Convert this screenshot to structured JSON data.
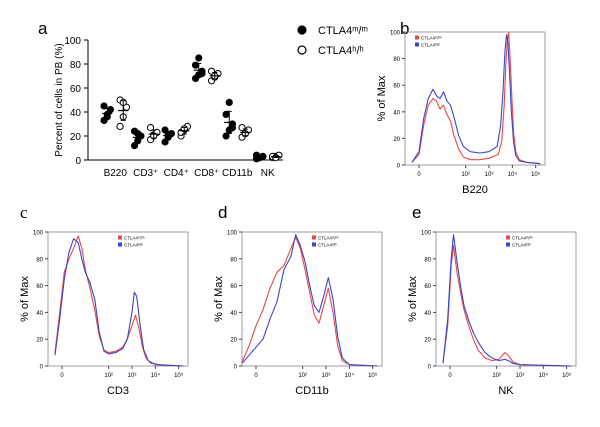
{
  "chart_data": [
    {
      "panel": "a",
      "type": "scatter",
      "ylabel": "Percent of cells in PB (%)",
      "ylim": [
        0,
        100
      ],
      "yticks": [
        "0",
        "20",
        "40",
        "60",
        "80",
        "100"
      ],
      "categories": [
        "B220",
        "CD3⁺",
        "CD4⁺",
        "CD8⁺",
        "CD11b",
        "NK"
      ],
      "legend_position": "top-right",
      "series": [
        {
          "name": "CTLA4ᵐ/ᵐ",
          "marker": "filled-circle",
          "points": [
            [
              33,
              38,
              42,
              45,
              36
            ],
            [
              12,
              16,
              20,
              24,
              22
            ],
            [
              15,
              19,
              22,
              25,
              21
            ],
            [
              68,
              71,
              74,
              79,
              85,
              72
            ],
            [
              20,
              25,
              30,
              38,
              48,
              27
            ],
            [
              1,
              2,
              3,
              4,
              2
            ]
          ]
        },
        {
          "name": "CTLA4ʰ/ʰ",
          "marker": "open-circle",
          "points": [
            [
              28,
              36,
              44,
              50,
              48
            ],
            [
              17,
              21,
              23,
              27,
              20
            ],
            [
              20,
              25,
              28,
              23,
              26
            ],
            [
              66,
              69,
              72,
              74,
              70
            ],
            [
              19,
              22,
              25,
              27,
              22
            ],
            [
              2,
              3,
              4,
              3,
              2
            ]
          ]
        }
      ]
    },
    {
      "panel": "b",
      "type": "line",
      "xlabel": "B220",
      "ylabel": "% of Max",
      "ylim": [
        0,
        100
      ],
      "yticks": [
        "0",
        "20",
        "40",
        "60",
        "80",
        "100"
      ],
      "xticks": [
        "0",
        "10²",
        "10³",
        "10⁴",
        "10⁵"
      ],
      "legend_position": "top-left",
      "series": [
        {
          "name": "CTLA4ᵐ/ᵐ",
          "color": "#e8474a",
          "points": [
            [
              -0.3,
              2
            ],
            [
              0,
              8
            ],
            [
              0.2,
              30
            ],
            [
              0.4,
              45
            ],
            [
              0.6,
              50
            ],
            [
              0.75,
              48
            ],
            [
              0.9,
              42
            ],
            [
              1.05,
              45
            ],
            [
              1.2,
              38
            ],
            [
              1.35,
              33
            ],
            [
              1.5,
              22
            ],
            [
              1.7,
              12
            ],
            [
              1.9,
              6
            ],
            [
              2.2,
              4
            ],
            [
              2.6,
              4
            ],
            [
              3.0,
              5
            ],
            [
              3.4,
              8
            ],
            [
              3.55,
              18
            ],
            [
              3.65,
              45
            ],
            [
              3.72,
              75
            ],
            [
              3.78,
              92
            ],
            [
              3.84,
              100
            ],
            [
              3.9,
              82
            ],
            [
              3.97,
              55
            ],
            [
              4.05,
              25
            ],
            [
              4.15,
              10
            ],
            [
              4.3,
              4
            ],
            [
              4.6,
              2
            ],
            [
              5.2,
              1
            ]
          ]
        },
        {
          "name": "CTLA4ʰ/ʰ",
          "color": "#3b45c8",
          "points": [
            [
              -0.3,
              2
            ],
            [
              0,
              10
            ],
            [
              0.2,
              35
            ],
            [
              0.4,
              50
            ],
            [
              0.6,
              57
            ],
            [
              0.75,
              52
            ],
            [
              0.9,
              50
            ],
            [
              1.05,
              55
            ],
            [
              1.2,
              48
            ],
            [
              1.35,
              45
            ],
            [
              1.5,
              36
            ],
            [
              1.7,
              22
            ],
            [
              1.9,
              14
            ],
            [
              2.2,
              10
            ],
            [
              2.6,
              9
            ],
            [
              3.0,
              10
            ],
            [
              3.35,
              14
            ],
            [
              3.5,
              30
            ],
            [
              3.6,
              55
            ],
            [
              3.68,
              85
            ],
            [
              3.75,
              98
            ],
            [
              3.81,
              92
            ],
            [
              3.88,
              70
            ],
            [
              3.95,
              42
            ],
            [
              4.05,
              18
            ],
            [
              4.15,
              7
            ],
            [
              4.3,
              3
            ],
            [
              4.6,
              2
            ],
            [
              5.2,
              1
            ]
          ]
        }
      ]
    },
    {
      "panel": "c",
      "type": "line",
      "xlabel": "CD3",
      "ylabel": "% of Max",
      "ylim": [
        0,
        100
      ],
      "yticks": [
        "0",
        "20",
        "40",
        "60",
        "80",
        "100"
      ],
      "xticks": [
        "0",
        "10²",
        "10³",
        "10⁴",
        "10⁵"
      ],
      "legend_position": "top-right",
      "series": [
        {
          "name": "CTLA4ᵐ/ᵐ",
          "color": "#e8474a",
          "points": [
            [
              -0.3,
              10
            ],
            [
              -0.1,
              40
            ],
            [
              0.1,
              70
            ],
            [
              0.3,
              80
            ],
            [
              0.5,
              88
            ],
            [
              0.7,
              97
            ],
            [
              0.85,
              88
            ],
            [
              1.0,
              72
            ],
            [
              1.2,
              58
            ],
            [
              1.4,
              42
            ],
            [
              1.6,
              22
            ],
            [
              1.8,
              12
            ],
            [
              2.0,
              10
            ],
            [
              2.3,
              11
            ],
            [
              2.6,
              14
            ],
            [
              2.8,
              20
            ],
            [
              3.0,
              30
            ],
            [
              3.15,
              38
            ],
            [
              3.3,
              28
            ],
            [
              3.45,
              14
            ],
            [
              3.6,
              6
            ],
            [
              3.8,
              2
            ],
            [
              4.2,
              1
            ],
            [
              5.2,
              0
            ]
          ]
        },
        {
          "name": "CTLA4ʰ/ʰ",
          "color": "#3b45c8",
          "points": [
            [
              -0.3,
              8
            ],
            [
              -0.1,
              35
            ],
            [
              0.1,
              65
            ],
            [
              0.3,
              85
            ],
            [
              0.5,
              95
            ],
            [
              0.7,
              92
            ],
            [
              0.85,
              80
            ],
            [
              1.0,
              70
            ],
            [
              1.2,
              62
            ],
            [
              1.4,
              50
            ],
            [
              1.6,
              25
            ],
            [
              1.8,
              11
            ],
            [
              2.0,
              9
            ],
            [
              2.3,
              10
            ],
            [
              2.6,
              13
            ],
            [
              2.8,
              20
            ],
            [
              3.0,
              40
            ],
            [
              3.1,
              55
            ],
            [
              3.2,
              52
            ],
            [
              3.35,
              30
            ],
            [
              3.5,
              12
            ],
            [
              3.7,
              4
            ],
            [
              4.0,
              1
            ],
            [
              5.2,
              0
            ]
          ]
        }
      ]
    },
    {
      "panel": "d",
      "type": "line",
      "xlabel": "CD11b",
      "ylabel": "% of Max",
      "ylim": [
        0,
        100
      ],
      "yticks": [
        "0",
        "20",
        "40",
        "60",
        "80",
        "100"
      ],
      "xticks": [
        "0",
        "10²",
        "10³",
        "10⁴",
        "10⁵"
      ],
      "legend_position": "top-right",
      "series": [
        {
          "name": "CTLA4ᵐ/ᵐ",
          "color": "#e8474a",
          "points": [
            [
              -0.6,
              3
            ],
            [
              -0.3,
              15
            ],
            [
              0,
              30
            ],
            [
              0.3,
              42
            ],
            [
              0.6,
              58
            ],
            [
              0.9,
              70
            ],
            [
              1.2,
              75
            ],
            [
              1.5,
              88
            ],
            [
              1.7,
              96
            ],
            [
              1.9,
              88
            ],
            [
              2.1,
              72
            ],
            [
              2.3,
              55
            ],
            [
              2.5,
              38
            ],
            [
              2.7,
              32
            ],
            [
              2.9,
              45
            ],
            [
              3.1,
              58
            ],
            [
              3.3,
              40
            ],
            [
              3.5,
              15
            ],
            [
              3.7,
              4
            ],
            [
              4.0,
              1
            ],
            [
              5.2,
              0
            ]
          ]
        },
        {
          "name": "CTLA4ʰ/ʰ",
          "color": "#3b45c8",
          "points": [
            [
              -0.6,
              2
            ],
            [
              -0.3,
              8
            ],
            [
              0,
              14
            ],
            [
              0.3,
              20
            ],
            [
              0.6,
              35
            ],
            [
              0.9,
              48
            ],
            [
              1.2,
              72
            ],
            [
              1.5,
              82
            ],
            [
              1.7,
              98
            ],
            [
              1.9,
              90
            ],
            [
              2.1,
              78
            ],
            [
              2.3,
              60
            ],
            [
              2.5,
              45
            ],
            [
              2.7,
              40
            ],
            [
              2.9,
              52
            ],
            [
              3.1,
              66
            ],
            [
              3.3,
              50
            ],
            [
              3.5,
              22
            ],
            [
              3.7,
              6
            ],
            [
              4.0,
              1
            ],
            [
              5.2,
              0
            ]
          ]
        }
      ]
    },
    {
      "panel": "e",
      "type": "line",
      "xlabel": "NK",
      "ylabel": "% of Max",
      "ylim": [
        0,
        100
      ],
      "yticks": [
        "0",
        "20",
        "40",
        "60",
        "80",
        "100"
      ],
      "xticks": [
        "0",
        "10²",
        "10³",
        "10⁴",
        "10⁵"
      ],
      "legend_position": "top-right",
      "series": [
        {
          "name": "CTLA4ᵐ/ᵐ",
          "color": "#e8474a",
          "points": [
            [
              -0.3,
              2
            ],
            [
              -0.1,
              30
            ],
            [
              0.05,
              75
            ],
            [
              0.15,
              90
            ],
            [
              0.3,
              70
            ],
            [
              0.45,
              55
            ],
            [
              0.6,
              42
            ],
            [
              0.8,
              30
            ],
            [
              1.0,
              20
            ],
            [
              1.2,
              12
            ],
            [
              1.5,
              6
            ],
            [
              1.8,
              4
            ],
            [
              2.1,
              5
            ],
            [
              2.35,
              10
            ],
            [
              2.5,
              8
            ],
            [
              2.7,
              3
            ],
            [
              3.0,
              1
            ],
            [
              5.2,
              0
            ]
          ]
        },
        {
          "name": "CTLA4ʰ/ʰ",
          "color": "#3b45c8",
          "points": [
            [
              -0.3,
              2
            ],
            [
              -0.1,
              35
            ],
            [
              0.05,
              80
            ],
            [
              0.15,
              98
            ],
            [
              0.3,
              78
            ],
            [
              0.45,
              60
            ],
            [
              0.6,
              45
            ],
            [
              0.8,
              34
            ],
            [
              1.0,
              25
            ],
            [
              1.2,
              18
            ],
            [
              1.5,
              10
            ],
            [
              1.8,
              6
            ],
            [
              2.1,
              4
            ],
            [
              2.35,
              5
            ],
            [
              2.5,
              4
            ],
            [
              2.7,
              2
            ],
            [
              3.0,
              1
            ],
            [
              5.2,
              0
            ]
          ]
        }
      ]
    }
  ]
}
